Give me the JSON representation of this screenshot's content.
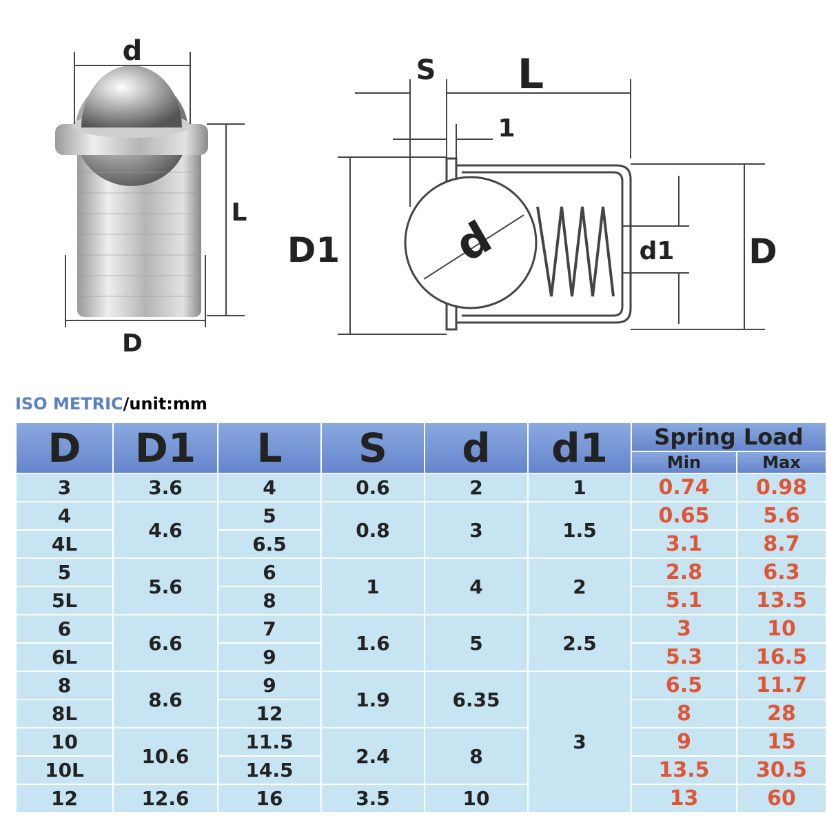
{
  "photo_labels": {
    "d": "d",
    "L": "L",
    "D": "D"
  },
  "drawing_labels": {
    "S": "S",
    "L": "L",
    "one": "1",
    "D1": "D1",
    "d": "d",
    "d1": "d1",
    "D": "D"
  },
  "table": {
    "caption": "ISO METRIC",
    "unit": "/unit:mm",
    "headers": [
      "D",
      "D1",
      "L",
      "S",
      "d",
      "d1"
    ],
    "spring_load": "Spring Load",
    "sub_headers": [
      "Min",
      "Max"
    ],
    "groups": [
      {
        "D1": "3.6",
        "S": "0.6",
        "d": "2",
        "d1": "1",
        "items": [
          {
            "D": "3",
            "L": "4",
            "min": "0.74",
            "max": "0.98"
          }
        ]
      },
      {
        "D1": "4.6",
        "S": "0.8",
        "d": "3",
        "d1": "1.5",
        "items": [
          {
            "D": "4",
            "L": "5",
            "min": "0.65",
            "max": "5.6"
          },
          {
            "D": "4L",
            "L": "6.5",
            "min": "3.1",
            "max": "8.7"
          }
        ]
      },
      {
        "D1": "5.6",
        "S": "1",
        "d": "4",
        "d1": "2",
        "items": [
          {
            "D": "5",
            "L": "6",
            "min": "2.8",
            "max": "6.3"
          },
          {
            "D": "5L",
            "L": "8",
            "min": "5.1",
            "max": "13.5"
          }
        ]
      },
      {
        "D1": "6.6",
        "S": "1.6",
        "d": "5",
        "d1": "2.5",
        "items": [
          {
            "D": "6",
            "L": "7",
            "min": "3",
            "max": "10"
          },
          {
            "D": "6L",
            "L": "9",
            "min": "5.3",
            "max": "16.5"
          }
        ]
      },
      {
        "D1": "8.6",
        "S": "1.9",
        "d": "6.35",
        "d1": "3",
        "items": [
          {
            "D": "8",
            "L": "9",
            "min": "6.5",
            "max": "11.7"
          },
          {
            "D": "8L",
            "L": "12",
            "min": "8",
            "max": "28"
          }
        ]
      },
      {
        "D1": "10.6",
        "S": "2.4",
        "d": "8",
        "items": [
          {
            "D": "10",
            "L": "11.5",
            "min": "9",
            "max": "15"
          },
          {
            "D": "10L",
            "L": "14.5",
            "min": "13.5",
            "max": "30.5"
          }
        ]
      },
      {
        "D1": "12.6",
        "S": "3.5",
        "d": "10",
        "items": [
          {
            "D": "12",
            "L": "16",
            "min": "13",
            "max": "60"
          }
        ]
      }
    ]
  }
}
